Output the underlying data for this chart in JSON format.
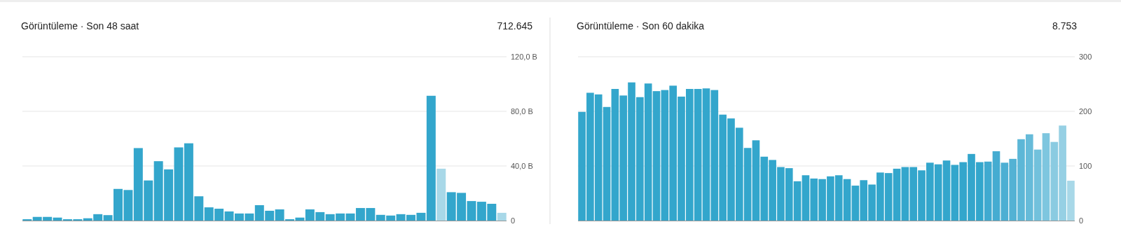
{
  "chart_data": [
    {
      "type": "bar",
      "title": "Görüntüleme · Son 48 saat",
      "annotations": [
        "712.645"
      ],
      "categories": [
        null,
        null,
        null,
        null,
        null,
        null,
        null,
        null,
        null,
        null,
        null,
        null,
        null,
        null,
        null,
        null,
        null,
        null,
        null,
        null,
        null,
        null,
        null,
        null,
        null,
        null,
        null,
        null,
        null,
        null,
        null,
        null,
        null,
        null,
        null,
        null,
        null,
        null,
        null,
        null,
        null,
        null,
        null,
        null,
        null,
        null,
        null,
        null
      ],
      "values": [
        1.0,
        2.7,
        2.7,
        2.2,
        1.0,
        1.0,
        1.7,
        4.7,
        4.0,
        23.2,
        22.4,
        53.1,
        29.4,
        43.5,
        37.5,
        53.6,
        56.6,
        17.8,
        9.7,
        8.7,
        6.7,
        5.2,
        5.2,
        11.3,
        7.2,
        8.2,
        1.0,
        2.2,
        8.2,
        6.2,
        4.7,
        5.2,
        5.2,
        9.2,
        9.2,
        4.2,
        3.7,
        4.7,
        4.2,
        5.7,
        91.4,
        38.0,
        20.8,
        20.3,
        14.3,
        13.8,
        12.3,
        5.7
      ],
      "colors": [
        "#33a6cc",
        "#33a6cc",
        "#33a6cc",
        "#33a6cc",
        "#33a6cc",
        "#33a6cc",
        "#33a6cc",
        "#33a6cc",
        "#33a6cc",
        "#33a6cc",
        "#33a6cc",
        "#33a6cc",
        "#33a6cc",
        "#33a6cc",
        "#33a6cc",
        "#33a6cc",
        "#33a6cc",
        "#33a6cc",
        "#33a6cc",
        "#33a6cc",
        "#33a6cc",
        "#33a6cc",
        "#33a6cc",
        "#33a6cc",
        "#33a6cc",
        "#33a6cc",
        "#33a6cc",
        "#33a6cc",
        "#33a6cc",
        "#33a6cc",
        "#33a6cc",
        "#33a6cc",
        "#33a6cc",
        "#33a6cc",
        "#33a6cc",
        "#33a6cc",
        "#33a6cc",
        "#33a6cc",
        "#33a6cc",
        "#33a6cc",
        "#33a6cc",
        "#a8d8e8",
        "#33a6cc",
        "#33a6cc",
        "#33a6cc",
        "#33a6cc",
        "#33a6cc",
        "#a8d8e8"
      ],
      "ylim": [
        0,
        120
      ],
      "yticks": [
        0,
        {
          "value": 40,
          "label": "40,0 B"
        },
        {
          "value": 80,
          "label": "80,0 B"
        },
        {
          "value": 120,
          "label": "120,0 B"
        }
      ],
      "grid": "y",
      "tick_labels": "y"
    },
    {
      "type": "bar",
      "title": "Görüntüleme · Son 60 dakika",
      "annotations": [
        "8.753"
      ],
      "categories": [
        null,
        null,
        null,
        null,
        null,
        null,
        null,
        null,
        null,
        null,
        null,
        null,
        null,
        null,
        null,
        null,
        null,
        null,
        null,
        null,
        null,
        null,
        null,
        null,
        null,
        null,
        null,
        null,
        null,
        null,
        null,
        null,
        null,
        null,
        null,
        null,
        null,
        null,
        null,
        null,
        null,
        null,
        null,
        null,
        null,
        null,
        null,
        null,
        null,
        null,
        null,
        null,
        null,
        null,
        null,
        null,
        null,
        null,
        null,
        null
      ],
      "values": [
        199,
        234,
        231,
        208,
        241,
        229,
        253,
        226,
        251,
        237,
        239,
        247,
        227,
        241,
        241,
        242,
        239,
        194,
        187,
        170,
        133,
        147,
        117,
        111,
        98,
        96,
        72,
        83,
        77,
        76,
        81,
        83,
        76,
        64,
        74,
        66,
        88,
        87,
        95,
        98,
        98,
        92,
        106,
        103,
        110,
        102,
        107,
        122,
        107,
        108,
        127,
        106,
        113,
        149,
        158,
        130,
        160,
        144,
        174,
        73
      ],
      "colors": [
        "#33a6cc",
        "#33a6cc",
        "#33a6cc",
        "#33a6cc",
        "#33a6cc",
        "#33a6cc",
        "#33a6cc",
        "#33a6cc",
        "#33a6cc",
        "#33a6cc",
        "#33a6cc",
        "#33a6cc",
        "#33a6cc",
        "#33a6cc",
        "#33a6cc",
        "#33a6cc",
        "#33a6cc",
        "#33a6cc",
        "#33a6cc",
        "#33a6cc",
        "#33a6cc",
        "#33a6cc",
        "#33a6cc",
        "#33a6cc",
        "#33a6cc",
        "#33a6cc",
        "#33a6cc",
        "#33a6cc",
        "#33a6cc",
        "#33a6cc",
        "#33a6cc",
        "#33a6cc",
        "#33a6cc",
        "#33a6cc",
        "#33a6cc",
        "#33a6cc",
        "#33a6cc",
        "#33a6cc",
        "#33a6cc",
        "#33a6cc",
        "#33a6cc",
        "#33a6cc",
        "#33a6cc",
        "#33a6cc",
        "#33a6cc",
        "#33a6cc",
        "#33a6cc",
        "#33a6cc",
        "#33a6cc",
        "#40aad0",
        "#45acd1",
        "#4cafd3",
        "#53b2d4",
        "#5cb7d7",
        "#66bbd9",
        "#72c1dc",
        "#7ec6df",
        "#8acbe1",
        "#96d0e4",
        "#a8d8e8"
      ],
      "ylim": [
        0,
        300
      ],
      "yticks": [
        0,
        100,
        200,
        300
      ],
      "grid": "y",
      "tick_labels": "y"
    }
  ]
}
